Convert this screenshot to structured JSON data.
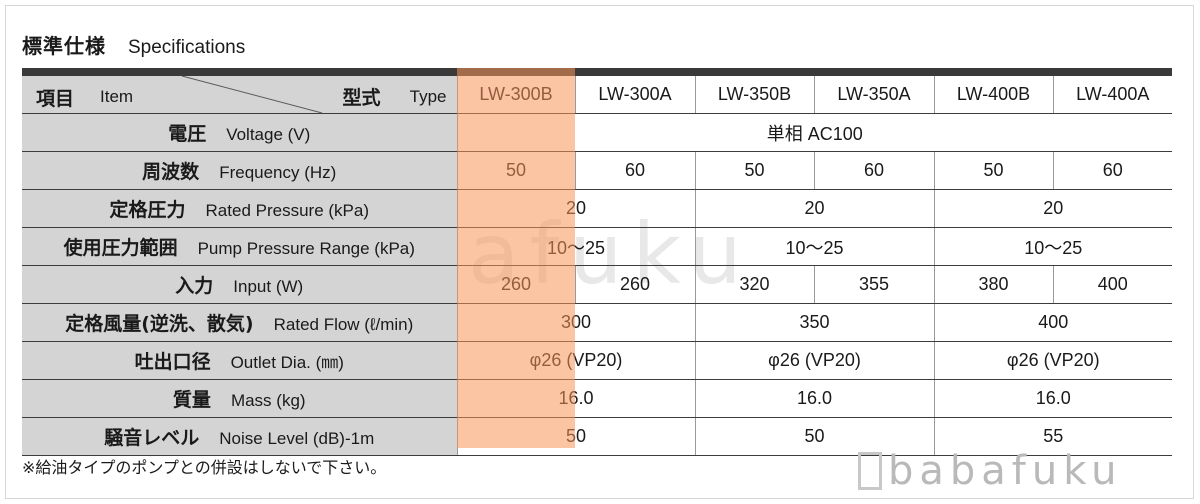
{
  "title": {
    "jp": "標準仕様",
    "en": "Specifications"
  },
  "header": {
    "item_jp": "項目",
    "item_en": "Item",
    "type_jp": "型式",
    "type_en": "Type",
    "models": [
      "LW-300B",
      "LW-300A",
      "LW-350B",
      "LW-350A",
      "LW-400B",
      "LW-400A"
    ]
  },
  "rows": {
    "voltage": {
      "jp": "電圧",
      "en": "Voltage (V)",
      "value": "単相 AC100"
    },
    "frequency": {
      "jp": "周波数",
      "en": "Frequency (Hz)",
      "values": [
        "50",
        "60",
        "50",
        "60",
        "50",
        "60"
      ]
    },
    "rated_pressure": {
      "jp": "定格圧力",
      "en": "Rated Pressure (kPa)",
      "values": [
        "20",
        "20",
        "20"
      ]
    },
    "pressure_range": {
      "jp": "使用圧力範囲",
      "en": "Pump Pressure Range (kPa)",
      "values": [
        "10〜25",
        "10〜25",
        "10〜25"
      ]
    },
    "input": {
      "jp": "入力",
      "en": "Input (W)",
      "values": [
        "260",
        "260",
        "320",
        "355",
        "380",
        "400"
      ]
    },
    "rated_flow": {
      "jp": "定格風量(逆洗、散気)",
      "en": "Rated Flow (ℓ/min)",
      "values": [
        "300",
        "350",
        "400"
      ]
    },
    "outlet": {
      "jp": "吐出口径",
      "en": "Outlet Dia. (㎜)",
      "values": [
        "φ26 (VP20)",
        "φ26 (VP20)",
        "φ26 (VP20)"
      ]
    },
    "mass": {
      "jp": "質量",
      "en": "Mass (kg)",
      "values": [
        "16.0",
        "16.0",
        "16.0"
      ]
    },
    "noise": {
      "jp": "騒音レベル",
      "en": "Noise Level (dB)-1m",
      "values": [
        "50",
        "50",
        "55"
      ]
    }
  },
  "footnote": "※給油タイプのポンプとの併設はしないで下さい。",
  "watermark": "babafuku",
  "colors": {
    "highlight": "#f79458",
    "label_bg": "#d4d4d4",
    "top_bar": "#3a3a3a"
  }
}
